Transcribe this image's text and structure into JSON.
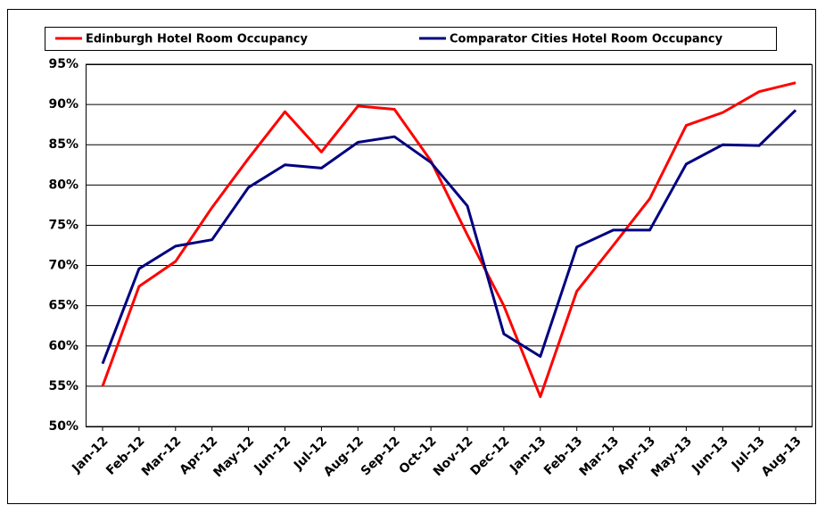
{
  "chart_data": {
    "type": "line",
    "categories": [
      "Jan-12",
      "Feb-12",
      "Mar-12",
      "Apr-12",
      "May-12",
      "Jun-12",
      "Jul-12",
      "Aug-12",
      "Sep-12",
      "Oct-12",
      "Nov-12",
      "Dec-12",
      "Jan-13",
      "Feb-13",
      "Mar-13",
      "Apr-13",
      "May-13",
      "Jun-13",
      "Jul-13",
      "Aug-13"
    ],
    "series": [
      {
        "name": "Edinburgh Hotel Room Occupancy",
        "color": "#ff0000",
        "values": [
          55.0,
          67.4,
          70.5,
          77.2,
          83.3,
          89.1,
          84.1,
          89.8,
          89.4,
          83.0,
          73.8,
          65.0,
          53.7,
          66.8,
          72.5,
          78.3,
          87.4,
          89.0,
          91.6,
          92.7
        ]
      },
      {
        "name": "Comparator Cities Hotel Room Occupancy",
        "color": "#000080",
        "values": [
          57.8,
          69.6,
          72.4,
          73.2,
          79.7,
          82.5,
          82.1,
          85.3,
          86.0,
          82.8,
          77.4,
          61.5,
          58.7,
          72.3,
          74.4,
          74.4,
          82.6,
          85.0,
          84.9,
          89.3
        ]
      }
    ],
    "ylim": [
      50,
      95
    ],
    "yticks": [
      {
        "value": 50,
        "label": "50%"
      },
      {
        "value": 55,
        "label": "55%"
      },
      {
        "value": 60,
        "label": "60%"
      },
      {
        "value": 65,
        "label": "65%"
      },
      {
        "value": 70,
        "label": "70%"
      },
      {
        "value": 75,
        "label": "75%"
      },
      {
        "value": 80,
        "label": "80%"
      },
      {
        "value": 85,
        "label": "85%"
      },
      {
        "value": 90,
        "label": "90%"
      },
      {
        "value": 95,
        "label": "95%"
      }
    ],
    "grid": true,
    "legend": "top"
  }
}
